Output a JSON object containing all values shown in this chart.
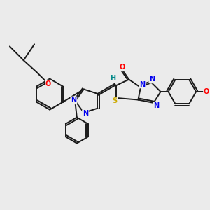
{
  "bg_color": "#ebebeb",
  "line_color": "#1a1a1a",
  "bond_width": 1.4,
  "atom_colors": {
    "N": "#0000ee",
    "O": "#ff0000",
    "S": "#ccaa00",
    "H": "#008888",
    "C": "#1a1a1a"
  },
  "font_size": 7.0
}
